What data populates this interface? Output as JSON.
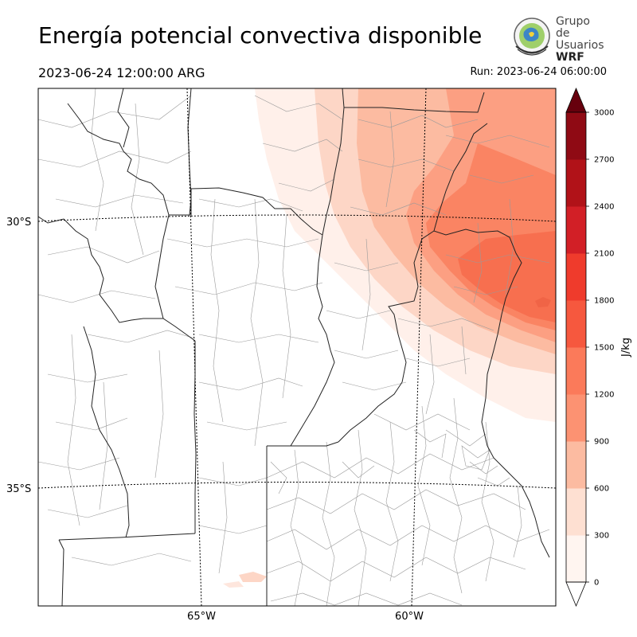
{
  "header": {
    "title": "Energía potencial convectiva disponible",
    "valid_time": "2023-06-24 12:00:00 ARG",
    "run_time": "Run: 2023-06-24 06:00:00"
  },
  "logo": {
    "line1": "Grupo de",
    "line2": "Usuarios",
    "line3": "WRF"
  },
  "map": {
    "lat_labels": [
      "30°S",
      "35°S"
    ],
    "lon_labels": [
      "65°W",
      "60°W"
    ],
    "field": "CAPE",
    "max_region": "northeast (Entre Ríos / Corrientes)"
  },
  "colorbar": {
    "unit": "J/kg",
    "ticks": [
      "0",
      "300",
      "600",
      "900",
      "1200",
      "1500",
      "1800",
      "2100",
      "2400",
      "2700",
      "3000"
    ],
    "colors": [
      "#fff5f0",
      "#fee0d2",
      "#fcbba1",
      "#fc9272",
      "#fb7a5a",
      "#f6583e",
      "#ef3b2c",
      "#d21f26",
      "#b11218",
      "#8f0a14",
      "#67000d"
    ],
    "extend": "both"
  }
}
